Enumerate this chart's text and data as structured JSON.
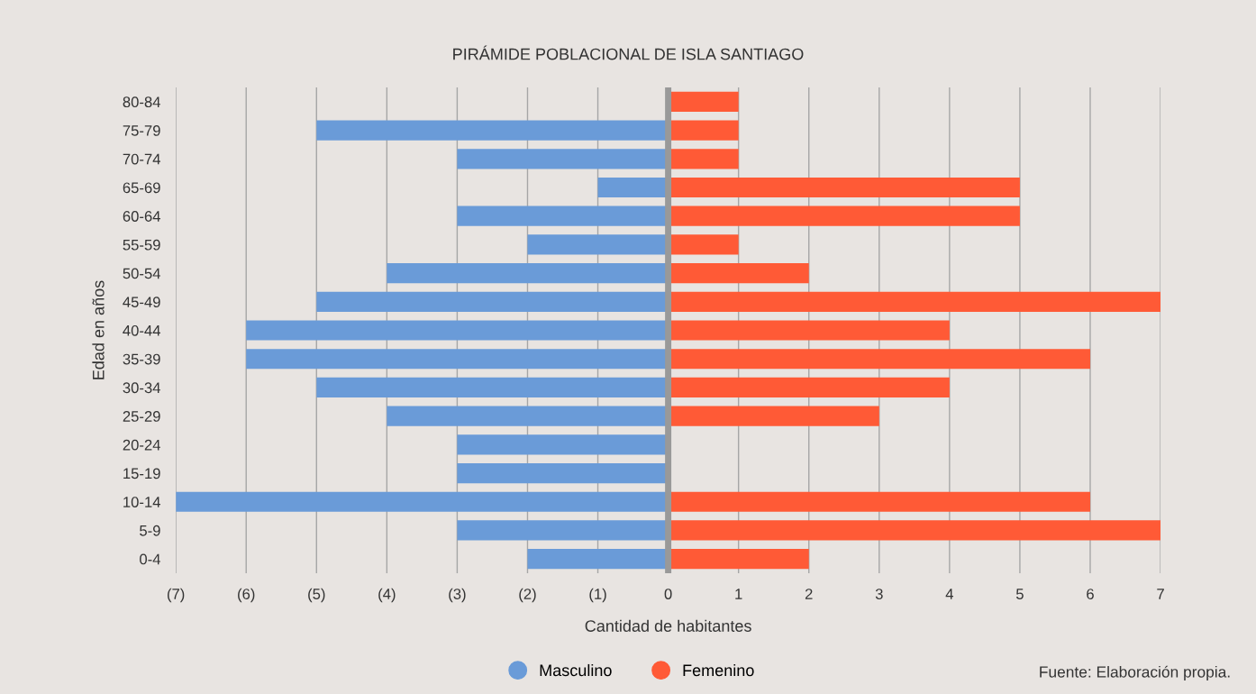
{
  "chart_data": {
    "type": "bar",
    "orientation": "horizontal",
    "title": "PIRÁMIDE POBLACIONAL DE ISLA SANTIAGO",
    "xlabel": "Cantidad de habitantes",
    "ylabel": "Edad en años",
    "categories": [
      "80-84",
      "75-79",
      "70-74",
      "65-69",
      "60-64",
      "55-59",
      "50-54",
      "45-49",
      "40-44",
      "35-39",
      "30-34",
      "25-29",
      "20-24",
      "15-19",
      "10-14",
      "5-9",
      "0-4"
    ],
    "series": [
      {
        "name": "Masculino",
        "color": "#6a9bd8",
        "values": [
          0,
          -5,
          -3,
          -1,
          -3,
          -2,
          -4,
          -5,
          -6,
          -6,
          -5,
          -4,
          -3,
          -3,
          -7,
          -3,
          -2
        ]
      },
      {
        "name": "Femenino",
        "color": "#ff5a36",
        "values": [
          1,
          1,
          1,
          5,
          5,
          1,
          2,
          7,
          4,
          6,
          4,
          3,
          0,
          0,
          6,
          7,
          2
        ]
      }
    ],
    "xlim": [
      -7,
      7
    ],
    "xticks": [
      {
        "value": -7,
        "label": "(7)"
      },
      {
        "value": -6,
        "label": "(6)"
      },
      {
        "value": -5,
        "label": "(5)"
      },
      {
        "value": -4,
        "label": "(4)"
      },
      {
        "value": -3,
        "label": "(3)"
      },
      {
        "value": -2,
        "label": "(2)"
      },
      {
        "value": -1,
        "label": "(1)"
      },
      0,
      1,
      2,
      3,
      4,
      5,
      6,
      7
    ],
    "stacked": true,
    "grid": "x",
    "legend": "bottom",
    "ref_lines": [
      {
        "axis": "x",
        "value": 0,
        "color": "#999999"
      }
    ],
    "annotations": [
      "Fuente: Elaboración propia."
    ]
  }
}
